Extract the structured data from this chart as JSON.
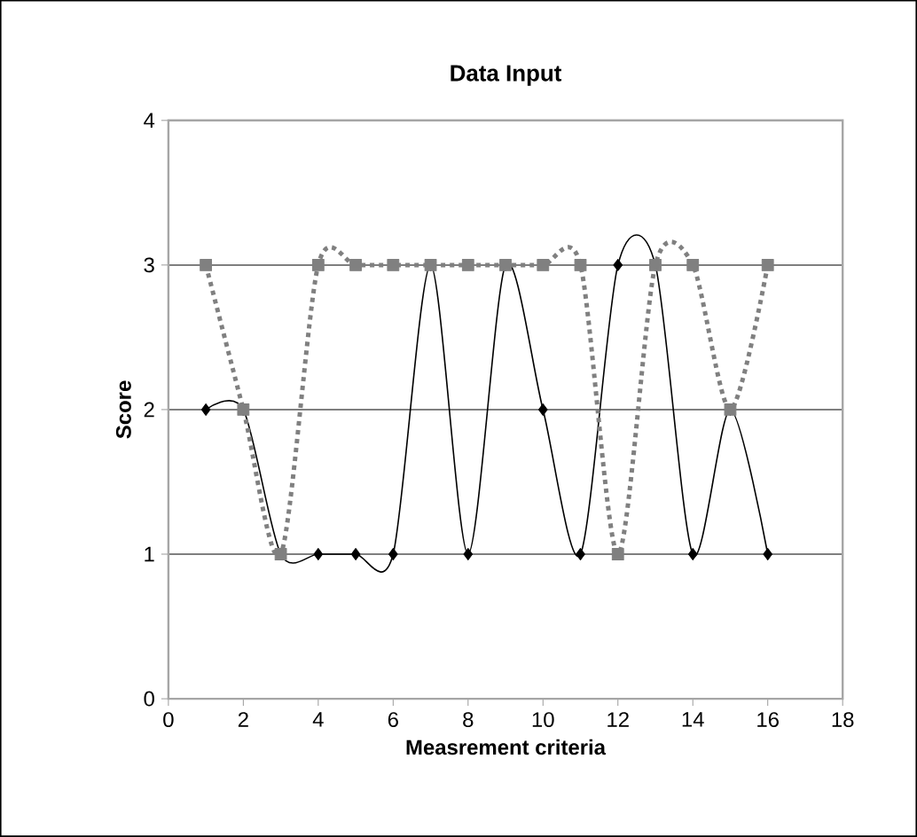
{
  "chart_data": {
    "type": "line",
    "title": "Data Input",
    "xlabel": "Measrement criteria",
    "ylabel": "Score",
    "x": [
      1,
      2,
      3,
      4,
      5,
      6,
      7,
      8,
      9,
      10,
      11,
      12,
      13,
      14,
      15,
      16
    ],
    "series": [
      {
        "color": "#000000",
        "marker": "diamond",
        "line_style": "solid",
        "values": [
          2,
          2,
          1,
          1,
          1,
          1,
          3,
          1,
          3,
          2,
          1,
          3,
          3,
          1,
          2,
          1
        ]
      },
      {
        "color": "#808080",
        "marker": "square",
        "line_style": "dotted",
        "values": [
          3,
          2,
          1,
          3,
          3,
          3,
          3,
          3,
          3,
          3,
          3,
          1,
          3,
          3,
          2,
          3
        ]
      }
    ],
    "xlim": [
      0,
      18
    ],
    "xticks": [
      0,
      2,
      4,
      6,
      8,
      10,
      12,
      14,
      16,
      18
    ],
    "ylim": [
      0,
      4
    ],
    "yticks": [
      0,
      1,
      2,
      3,
      4
    ],
    "grid": "y"
  }
}
